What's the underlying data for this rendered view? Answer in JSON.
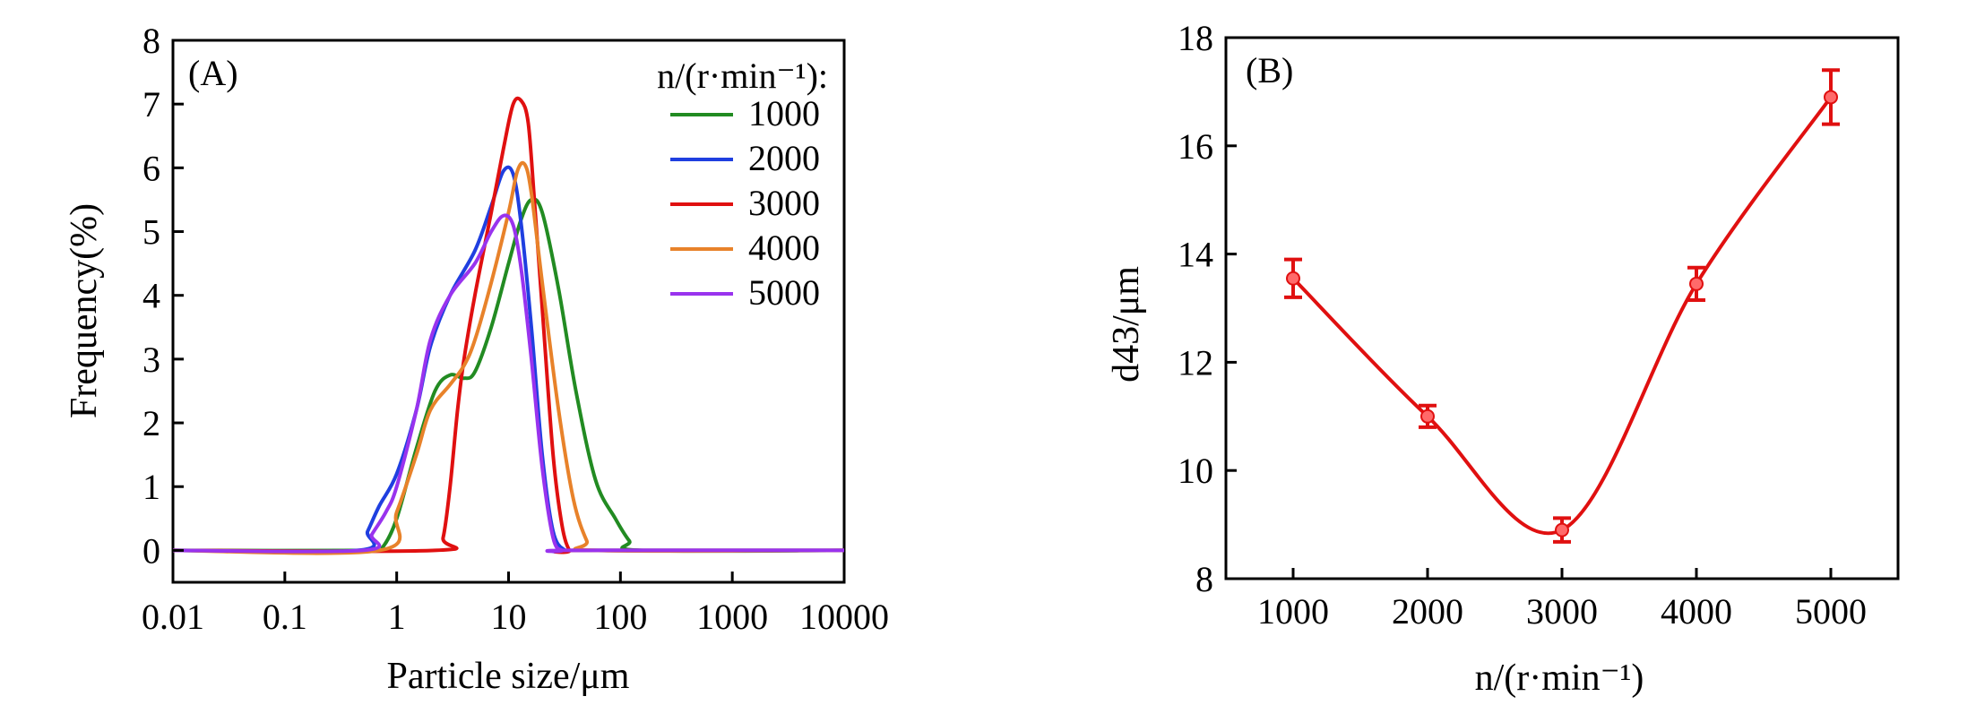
{
  "chart_data": [
    {
      "type": "line",
      "panel_label": "(A)",
      "xlabel": "Particle size/μm",
      "ylabel": "Frequency(%)",
      "x_scale": "log",
      "xlim": [
        0.01,
        10000
      ],
      "ylim": [
        -0.5,
        8
      ],
      "x_ticks": [
        "0.01",
        "0.1",
        "1",
        "10",
        "100",
        "1000",
        "10000"
      ],
      "y_ticks": [
        "0",
        "1",
        "2",
        "3",
        "4",
        "5",
        "6",
        "7",
        "8"
      ],
      "legend_title": "n/(r·min⁻¹):",
      "legend_position": "top-right",
      "series": [
        {
          "name": "1000",
          "color": "#228b22",
          "x": [
            0.01,
            0.6,
            0.75,
            1.0,
            1.5,
            2.2,
            3.0,
            4.0,
            5.0,
            7.0,
            10.0,
            13.0,
            16.0,
            20.0,
            28.0,
            40.0,
            60.0,
            90.0,
            120.0,
            150.0,
            10000
          ],
          "y": [
            0,
            0,
            0.05,
            0.5,
            1.6,
            2.5,
            2.75,
            2.7,
            2.8,
            3.5,
            4.5,
            5.2,
            5.5,
            5.3,
            4.1,
            2.5,
            1.1,
            0.5,
            0.15,
            0,
            0
          ]
        },
        {
          "name": "2000",
          "color": "#1f3fe0",
          "x": [
            0.01,
            0.45,
            0.55,
            0.7,
            1.0,
            1.5,
            2.0,
            3.0,
            5.0,
            7.0,
            9.0,
            11.0,
            13.0,
            16.0,
            20.0,
            25.0,
            32.0,
            40.0,
            10000
          ],
          "y": [
            0,
            0,
            0.3,
            0.7,
            1.2,
            2.2,
            3.2,
            4.0,
            4.7,
            5.4,
            5.95,
            5.9,
            5.1,
            3.5,
            1.5,
            0.3,
            0,
            0,
            0
          ]
        },
        {
          "name": "3000",
          "color": "#e01010",
          "x": [
            0.01,
            2.2,
            2.6,
            3.0,
            3.5,
            4.0,
            5.0,
            7.0,
            9.0,
            11.0,
            13.0,
            15.0,
            17.0,
            20.0,
            25.0,
            30.0,
            35.0,
            40.0,
            10000
          ],
          "y": [
            0,
            0,
            0.2,
            1.0,
            2.2,
            3.0,
            4.0,
            5.3,
            6.3,
            7.0,
            7.05,
            6.7,
            5.5,
            3.8,
            1.5,
            0.4,
            0,
            0,
            0
          ]
        },
        {
          "name": "4000",
          "color": "#e8822a",
          "x": [
            0.01,
            0.7,
            1.0,
            1.5,
            2.0,
            3.0,
            4.0,
            5.0,
            7.0,
            10.0,
            12.0,
            14.0,
            16.0,
            20.0,
            28.0,
            38.0,
            50.0,
            60.0,
            10000
          ],
          "y": [
            0,
            0,
            0.6,
            1.5,
            2.2,
            2.6,
            2.9,
            3.3,
            4.2,
            5.3,
            5.95,
            6.05,
            5.6,
            4.2,
            2.2,
            0.8,
            0.15,
            0,
            0
          ]
        },
        {
          "name": "5000",
          "color": "#9933ee",
          "x": [
            0.01,
            0.5,
            0.6,
            0.8,
            1.0,
            1.5,
            2.0,
            3.0,
            5.0,
            7.0,
            9.0,
            11.0,
            13.0,
            16.0,
            20.0,
            25.0,
            30.0,
            35.0,
            10000
          ],
          "y": [
            0,
            0,
            0.25,
            0.6,
            1.0,
            2.2,
            3.3,
            4.0,
            4.5,
            5.0,
            5.25,
            5.1,
            4.4,
            3.0,
            1.3,
            0.2,
            0,
            0,
            0
          ]
        }
      ]
    },
    {
      "type": "line",
      "panel_label": "(B)",
      "xlabel": "n/(r·min⁻¹)",
      "ylabel": "d43/μm",
      "xlim": [
        500,
        5500
      ],
      "ylim": [
        8,
        18
      ],
      "x_ticks": [
        "1000",
        "2000",
        "3000",
        "4000",
        "5000"
      ],
      "y_ticks": [
        "8",
        "10",
        "12",
        "14",
        "16",
        "18"
      ],
      "grid": false,
      "series": [
        {
          "color": "#e01010",
          "x": [
            1000,
            2000,
            3000,
            4000,
            5000
          ],
          "y": [
            13.55,
            11.0,
            8.9,
            13.45,
            16.9
          ],
          "error": [
            0.35,
            0.2,
            0.22,
            0.3,
            0.5
          ]
        }
      ]
    }
  ]
}
